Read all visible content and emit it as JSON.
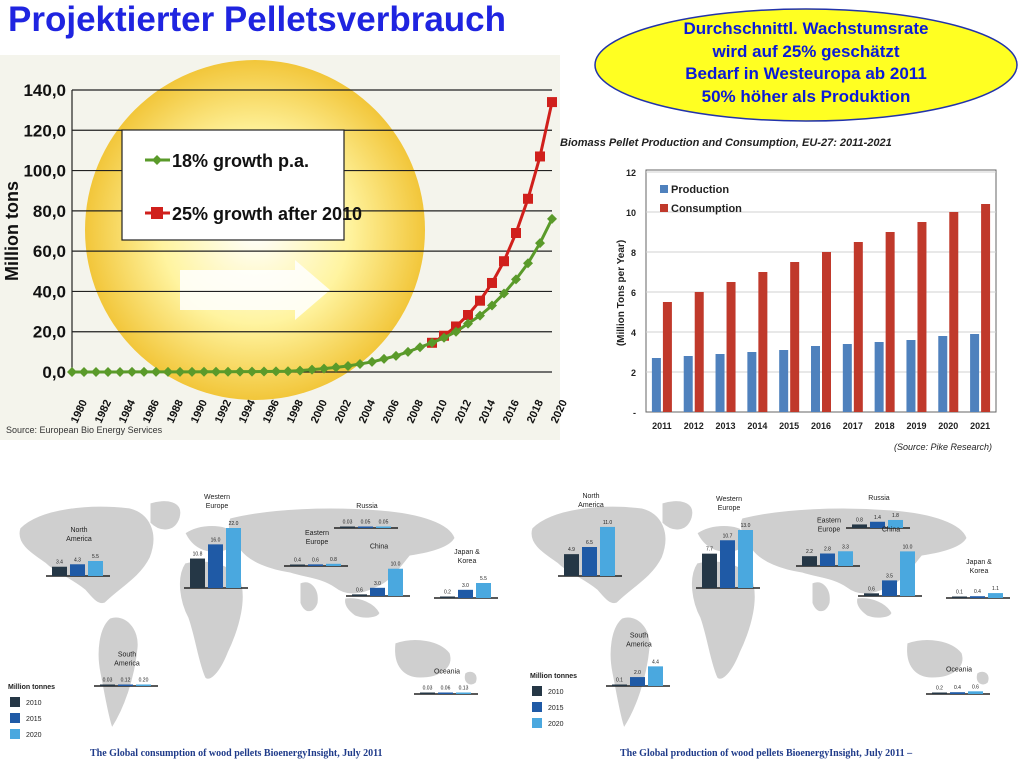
{
  "slide_title": "Projektierter Pelletsverbrauch",
  "callout_lines": [
    "Durchschnittl. Wachstumsrate",
    "wird auf 25% geschätzt",
    "Bedarf in Westeuropa ab 2011",
    "50% höher als Produktion"
  ],
  "colors": {
    "title": "#1f24e0",
    "callout_fill": "#ffff22",
    "green": "#5a9a2a",
    "red": "#d0201c",
    "prod_blue": "#4f81bd",
    "cons_red": "#c0392b",
    "c2010": "#253746",
    "c2015": "#1f5aa6",
    "c2020": "#4aa8df"
  },
  "chart_data": [
    {
      "type": "line",
      "ylabel": "Million tons",
      "ylim": [
        0,
        140
      ],
      "yticks": [
        "0,0",
        "20,0",
        "40,0",
        "60,0",
        "80,0",
        "100,0",
        "120,0",
        "140,0"
      ],
      "xticks": [
        "1980",
        "1982",
        "1984",
        "1986",
        "1988",
        "1990",
        "1992",
        "1994",
        "1996",
        "1998",
        "2000",
        "2002",
        "2004",
        "2006",
        "2008",
        "2010",
        "2012",
        "2014",
        "2016",
        "2018",
        "2020"
      ],
      "x": [
        1980,
        1981,
        1982,
        1983,
        1984,
        1985,
        1986,
        1987,
        1988,
        1989,
        1990,
        1991,
        1992,
        1993,
        1994,
        1995,
        1996,
        1997,
        1998,
        1999,
        2000,
        2001,
        2002,
        2003,
        2004,
        2005,
        2006,
        2007,
        2008,
        2009,
        2010,
        2011,
        2012,
        2013,
        2014,
        2015,
        2016,
        2017,
        2018,
        2019,
        2020
      ],
      "series": [
        {
          "name": "18% growth p.a.",
          "marker": "diamond",
          "x": [
            1980,
            1981,
            1982,
            1983,
            1984,
            1985,
            1986,
            1987,
            1988,
            1989,
            1990,
            1991,
            1992,
            1993,
            1994,
            1995,
            1996,
            1997,
            1998,
            1999,
            2000,
            2001,
            2002,
            2003,
            2004,
            2005,
            2006,
            2007,
            2008,
            2009,
            2010,
            2011,
            2012,
            2013,
            2014,
            2015,
            2016,
            2017,
            2018,
            2019,
            2020
          ],
          "values": [
            0.01,
            0.02,
            0.02,
            0.03,
            0.03,
            0.04,
            0.05,
            0.05,
            0.06,
            0.08,
            0.09,
            0.11,
            0.13,
            0.15,
            0.17,
            0.2,
            0.24,
            0.3,
            0.4,
            0.7,
            1.2,
            1.7,
            2.3,
            3.0,
            4.0,
            5.0,
            6.5,
            8.0,
            10.0,
            12.3,
            14.5,
            17.0,
            20.0,
            24.0,
            28.0,
            33.0,
            39.0,
            46.0,
            54.0,
            64.0,
            76.0
          ]
        },
        {
          "name": "25% growth after 2010",
          "marker": "square",
          "x": [
            2010,
            2011,
            2012,
            2013,
            2014,
            2015,
            2016,
            2017,
            2018,
            2019,
            2020
          ],
          "values": [
            14.5,
            18.0,
            22.6,
            28.3,
            35.4,
            44.2,
            55.0,
            69.0,
            86.0,
            107.0,
            134.0
          ]
        }
      ],
      "source": "Source: European Bio Energy Services"
    },
    {
      "type": "bar",
      "title": "Biomass Pellet Production and Consumption, EU-27: 2011-2021",
      "ylabel": "(Million Tons per Year)",
      "ylim": [
        0,
        12
      ],
      "yticks": [
        "-",
        "2",
        "4",
        "6",
        "8",
        "10",
        "12"
      ],
      "categories": [
        "2011",
        "2012",
        "2013",
        "2014",
        "2015",
        "2016",
        "2017",
        "2018",
        "2019",
        "2020",
        "2021"
      ],
      "series": [
        {
          "name": "Production",
          "values": [
            2.7,
            2.8,
            2.9,
            3.0,
            3.1,
            3.3,
            3.4,
            3.5,
            3.6,
            3.8,
            3.9
          ]
        },
        {
          "name": "Consumption",
          "values": [
            5.5,
            6.0,
            6.5,
            7.0,
            7.5,
            8.0,
            8.5,
            9.0,
            9.5,
            10.0,
            10.4
          ]
        }
      ],
      "source": "(Source: Pike Research)"
    },
    {
      "type": "bar",
      "caption": "The Global consumption of wood pellets  BioenergyInsight, July 2011",
      "legend_title": "Million tonnes",
      "legend": [
        "2010",
        "2015",
        "2020"
      ],
      "regions": [
        {
          "name": "North America",
          "values": [
            3.4,
            4.3,
            5.5
          ],
          "labels": [
            "3.4",
            "4.3",
            "5.5"
          ]
        },
        {
          "name": "Western Europe",
          "values": [
            10.8,
            16.0,
            22.0
          ],
          "labels": [
            "10.8",
            "16.0",
            "22.0"
          ]
        },
        {
          "name": "Eastern Europe",
          "values": [
            0.4,
            0.6,
            0.8
          ],
          "labels": [
            "0.4",
            "0.6",
            "0.8"
          ]
        },
        {
          "name": "Russia",
          "values": [
            0.03,
            0.05,
            0.05
          ],
          "labels": [
            "0.03",
            "0.05",
            "0.05"
          ]
        },
        {
          "name": "China",
          "values": [
            0.6,
            3.0,
            10.0
          ],
          "labels": [
            "0.6",
            "3.0",
            "10.0"
          ]
        },
        {
          "name": "Japan & Korea",
          "values": [
            0.2,
            3.0,
            5.5
          ],
          "labels": [
            "0.2",
            "3.0",
            "5.5"
          ]
        },
        {
          "name": "South America",
          "values": [
            0.03,
            0.12,
            0.2
          ],
          "labels": [
            "0.03",
            "0.12",
            "0.20"
          ]
        },
        {
          "name": "Oceania",
          "values": [
            0.03,
            0.06,
            0.13
          ],
          "labels": [
            "0.03",
            "0.06",
            "0.13"
          ]
        }
      ]
    },
    {
      "type": "bar",
      "caption": "The Global production of wood pellets  BioenergyInsight, July 2011 –",
      "legend_title": "Million tonnes",
      "legend": [
        "2010",
        "2015",
        "2020"
      ],
      "regions": [
        {
          "name": "North America",
          "values": [
            4.9,
            6.5,
            11.0
          ],
          "labels": [
            "4.9",
            "6.5",
            "11.0"
          ]
        },
        {
          "name": "Western Europe",
          "values": [
            7.7,
            10.7,
            13.0
          ],
          "labels": [
            "7.7",
            "10.7",
            "13.0"
          ]
        },
        {
          "name": "Eastern Europe",
          "values": [
            2.2,
            2.8,
            3.3
          ],
          "labels": [
            "2.2",
            "2.8",
            "3.3"
          ]
        },
        {
          "name": "Russia",
          "values": [
            0.8,
            1.4,
            1.8
          ],
          "labels": [
            "0.8",
            "1.4",
            "1.8"
          ]
        },
        {
          "name": "China",
          "values": [
            0.6,
            3.5,
            10.0
          ],
          "labels": [
            "0.6",
            "3.5",
            "10.0"
          ]
        },
        {
          "name": "Japan & Korea",
          "values": [
            0.1,
            0.4,
            1.1
          ],
          "labels": [
            "0.1",
            "0.4",
            "1.1"
          ]
        },
        {
          "name": "South America",
          "values": [
            0.1,
            2.0,
            4.4
          ],
          "labels": [
            "0.1",
            "2.0",
            "4.4"
          ]
        },
        {
          "name": "Oceania",
          "values": [
            0.2,
            0.4,
            0.6
          ],
          "labels": [
            "0.2",
            "0.4",
            "0.6"
          ]
        }
      ]
    }
  ]
}
